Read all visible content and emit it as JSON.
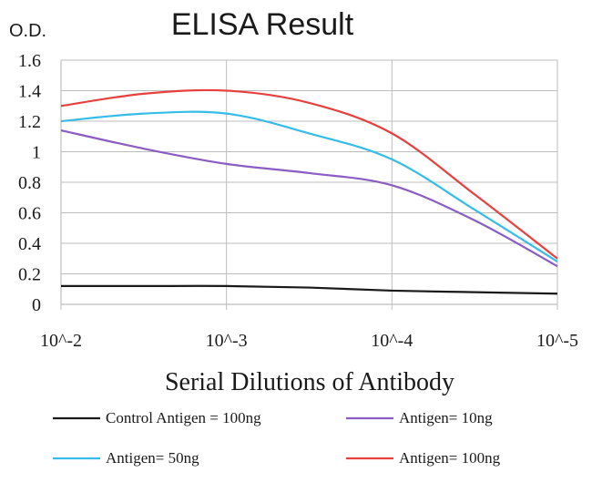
{
  "chart_data": {
    "type": "line",
    "title": "ELISA Result",
    "ylabel": "O.D.",
    "xlabel": "Serial Dilutions of Antibody",
    "ylim": [
      0,
      1.6
    ],
    "yticks": [
      "0",
      "0.2",
      "0.4",
      "0.6",
      "0.8",
      "1",
      "1.2",
      "1.4",
      "1.6"
    ],
    "categories": [
      "10^-2",
      "10^-3",
      "10^-4",
      "10^-5"
    ],
    "x": [
      0,
      0.5,
      1,
      1.5,
      2,
      2.5,
      3
    ],
    "grid": true,
    "legend_position": "bottom",
    "series": [
      {
        "name": "Control Antigen = 100ng",
        "color": "#1a1a1a",
        "values": [
          0.12,
          0.12,
          0.12,
          0.11,
          0.09,
          0.08,
          0.07
        ]
      },
      {
        "name": "Antigen= 10ng",
        "color": "#8a5cc4",
        "values": [
          1.14,
          1.02,
          0.92,
          0.86,
          0.78,
          0.55,
          0.25
        ]
      },
      {
        "name": "Antigen= 50ng",
        "color": "#35bce8",
        "values": [
          1.2,
          1.25,
          1.25,
          1.12,
          0.95,
          0.62,
          0.28
        ]
      },
      {
        "name": "Antigen= 100ng",
        "color": "#e8403d",
        "values": [
          1.3,
          1.38,
          1.4,
          1.32,
          1.12,
          0.72,
          0.3
        ]
      }
    ]
  }
}
